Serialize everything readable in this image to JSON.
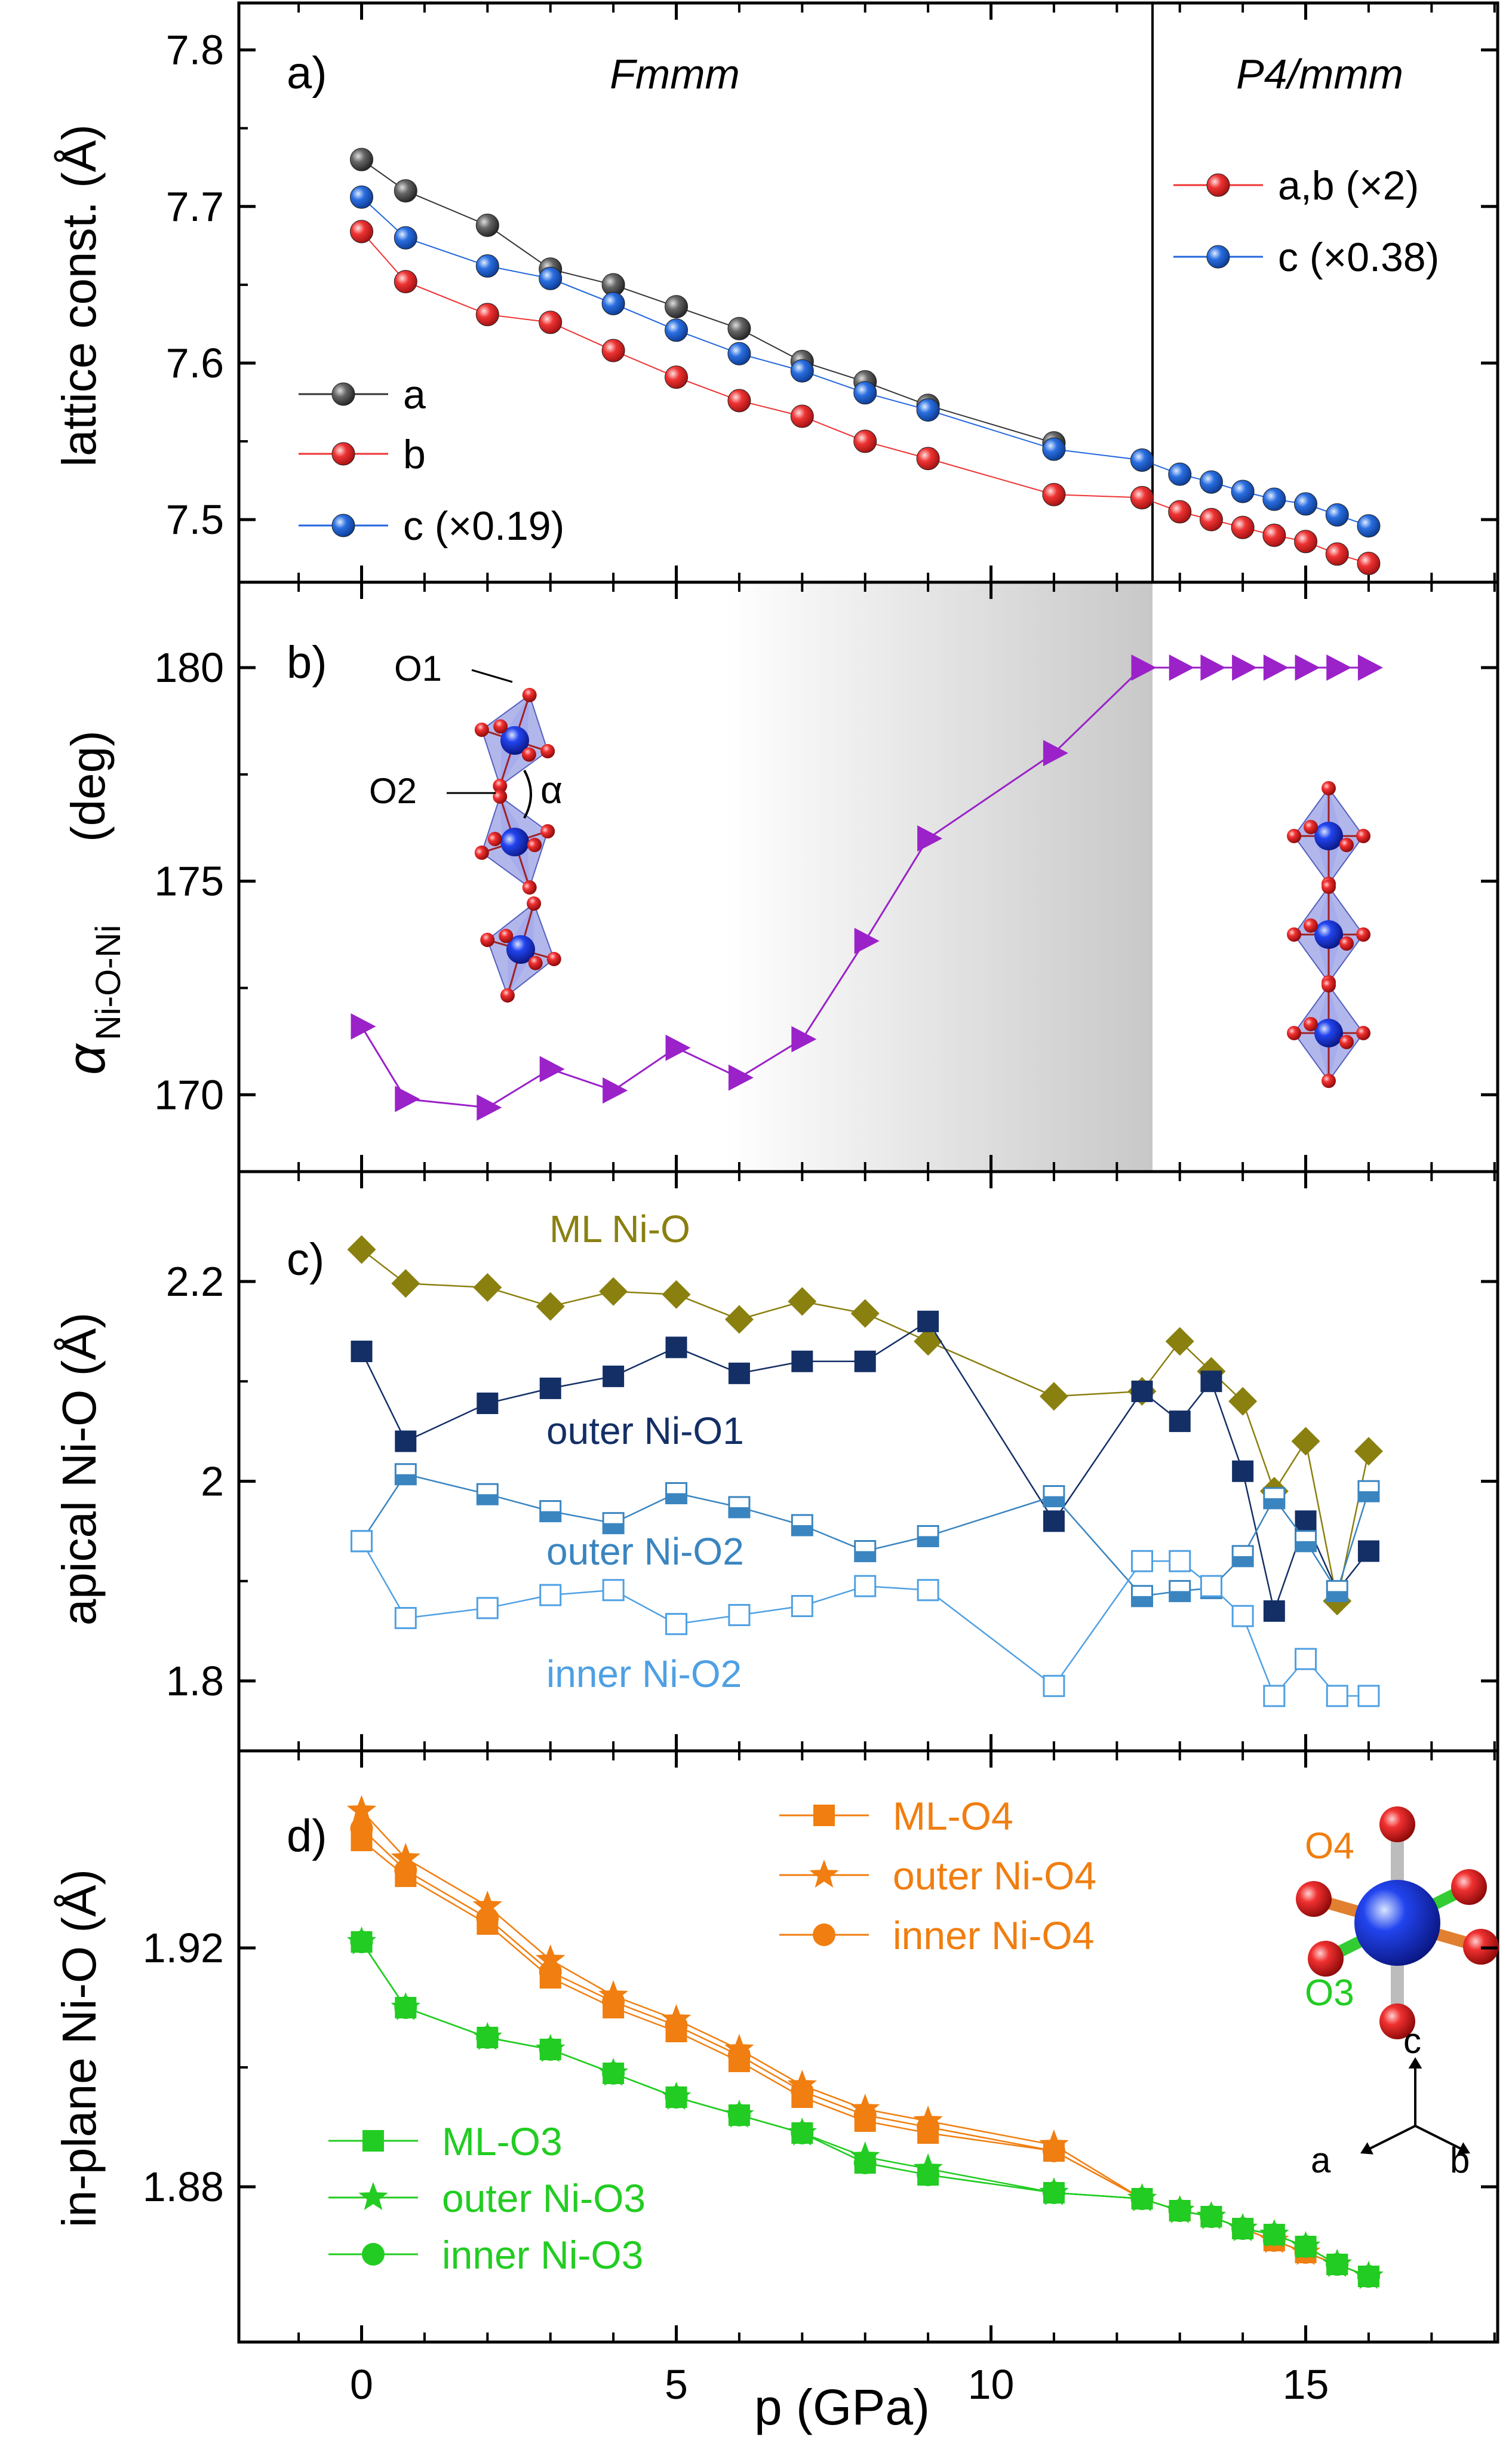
{
  "chart_data": [
    {
      "panel": "a)",
      "type": "scatter",
      "ylabel": "lattice const. (Å)",
      "ylim": [
        7.46,
        7.83
      ],
      "yticks": [
        7.5,
        7.6,
        7.7,
        7.8
      ],
      "region_labels": [
        "Fmmm",
        "P4/mmm"
      ],
      "series": [
        {
          "name": "a",
          "legend": "a",
          "color": "#555555",
          "region": "Fmmm",
          "x": [
            0,
            0.7,
            2,
            3,
            4,
            5,
            6,
            7,
            8,
            9,
            11
          ],
          "y": [
            7.73,
            7.71,
            7.688,
            7.66,
            7.65,
            7.636,
            7.622,
            7.601,
            7.588,
            7.573,
            7.549
          ]
        },
        {
          "name": "b",
          "legend": "b",
          "color": "#ee3333",
          "region": "Fmmm",
          "x": [
            0,
            0.7,
            2,
            3,
            4,
            5,
            6,
            7,
            8,
            9,
            11,
            12.4
          ],
          "y": [
            7.684,
            7.652,
            7.631,
            7.626,
            7.608,
            7.591,
            7.576,
            7.566,
            7.55,
            7.539,
            7.516,
            7.514
          ]
        },
        {
          "name": "c (Fmmm)",
          "legend": "c (×0.19)",
          "color": "#2266dd",
          "region": "Fmmm",
          "x": [
            0,
            0.7,
            2,
            3,
            4,
            5,
            6,
            7,
            8,
            9,
            11,
            12.4
          ],
          "y": [
            7.706,
            7.68,
            7.662,
            7.654,
            7.638,
            7.621,
            7.606,
            7.595,
            7.581,
            7.57,
            7.545,
            7.538
          ]
        },
        {
          "name": "a,b (P4/mmm)",
          "legend": "a,b (×2)",
          "color": "#ee3333",
          "region": "P4/mmm",
          "x": [
            12.4,
            13,
            13.5,
            14,
            14.5,
            15,
            15.5,
            16
          ],
          "y": [
            7.514,
            7.505,
            7.5,
            7.495,
            7.49,
            7.486,
            7.478,
            7.472
          ]
        },
        {
          "name": "c (P4/mmm)",
          "legend": "c (×0.38)",
          "color": "#2266dd",
          "region": "P4/mmm",
          "x": [
            12.4,
            13,
            13.5,
            14,
            14.5,
            15,
            15.5,
            16
          ],
          "y": [
            7.538,
            7.529,
            7.524,
            7.518,
            7.513,
            7.51,
            7.503,
            7.496
          ]
        }
      ]
    },
    {
      "panel": "b)",
      "type": "scatter",
      "ylabel_main": "α",
      "ylabel_sub": "Ni-O-Ni",
      "ylabel_unit": "(deg)",
      "ylim": [
        168.2,
        182
      ],
      "yticks": [
        170,
        175,
        180
      ],
      "shaded_region_x": [
        5.7,
        12.4
      ],
      "structure_labels": {
        "o1": "O1",
        "o2": "O2",
        "alpha": "α"
      },
      "series": [
        {
          "name": "alpha",
          "color": "#9a22c8",
          "x": [
            0,
            0.7,
            2,
            3,
            4,
            5,
            6,
            7,
            8,
            9,
            11,
            12.4,
            13,
            13.5,
            14,
            14.5,
            15,
            15.5,
            16
          ],
          "y": [
            171.6,
            169.9,
            169.7,
            170.6,
            170.1,
            171.1,
            170.4,
            171.3,
            173.6,
            176,
            178,
            180,
            180,
            180,
            180,
            180,
            180,
            180,
            180
          ]
        }
      ]
    },
    {
      "panel": "c)",
      "type": "scatter",
      "ylabel": "apical Ni-O (Å)",
      "ylim": [
        1.73,
        2.31
      ],
      "yticks": [
        1.8,
        2.0,
        2.2
      ],
      "series": [
        {
          "name": "ML Ni-O",
          "label": "ML Ni-O",
          "color": "#8a8010",
          "marker": "diamond",
          "x": [
            0,
            0.7,
            2,
            3,
            4,
            5,
            6,
            7,
            8,
            9,
            11,
            12.4,
            13,
            13.5,
            14,
            14.5,
            15,
            15.5,
            16
          ],
          "y": [
            2.232,
            2.198,
            2.194,
            2.175,
            2.19,
            2.187,
            2.162,
            2.18,
            2.168,
            2.14,
            2.085,
            2.09,
            2.14,
            2.11,
            2.08,
            1.99,
            2.04,
            1.88,
            2.03
          ]
        },
        {
          "name": "outer Ni-O1",
          "label": "outer Ni-O1",
          "color": "#142f66",
          "marker": "square",
          "x": [
            0,
            0.7,
            2,
            3,
            4,
            5,
            6,
            7,
            8,
            9,
            11,
            12.4,
            13,
            13.5,
            14,
            14.5,
            15,
            15.5,
            16
          ],
          "y": [
            2.13,
            2.04,
            2.078,
            2.093,
            2.105,
            2.134,
            2.108,
            2.12,
            2.12,
            2.16,
            1.96,
            2.09,
            2.06,
            2.1,
            2.01,
            1.87,
            1.96,
            1.89,
            1.93
          ]
        },
        {
          "name": "outer Ni-O2",
          "label": "outer Ni-O2",
          "color": "#3a85c0",
          "marker": "half-square",
          "x": [
            0,
            0.7,
            2,
            3,
            4,
            5,
            6,
            7,
            8,
            9,
            11,
            12.4,
            13,
            13.5,
            14,
            14.5,
            15,
            15.5,
            16
          ],
          "y": [
            1.94,
            2.007,
            1.987,
            1.97,
            1.958,
            1.988,
            1.974,
            1.956,
            1.93,
            1.945,
            1.985,
            1.885,
            1.89,
            1.893,
            1.925,
            1.983,
            1.94,
            1.89,
            1.99
          ]
        },
        {
          "name": "inner Ni-O2",
          "label": "inner Ni-O2",
          "color": "#4fa0e3",
          "marker": "open-square",
          "x": [
            0,
            0.7,
            2,
            3,
            4,
            5,
            6,
            7,
            8,
            9,
            11,
            12.4,
            13,
            13.5,
            14,
            14.5,
            15,
            15.5,
            16
          ],
          "y": [
            1.94,
            1.863,
            1.873,
            1.886,
            1.891,
            1.857,
            1.866,
            1.875,
            1.895,
            1.891,
            1.795,
            1.92,
            1.92,
            1.895,
            1.865,
            1.785,
            1.822,
            1.785,
            1.785
          ]
        }
      ]
    },
    {
      "panel": "d)",
      "type": "scatter",
      "xlabel": "p (GPa)",
      "xlim": [
        -1.95,
        18.05
      ],
      "xticks": [
        0,
        5,
        10,
        15
      ],
      "ylabel": "in-plane Ni-O (Å)",
      "ylim": [
        1.854,
        1.953
      ],
      "yticks": [
        1.88,
        1.92
      ],
      "axes_labels": {
        "a": "a",
        "b": "b",
        "c": "c",
        "o4": "O4",
        "o3": "O3"
      },
      "series": [
        {
          "name": "ML-O4",
          "legend": "ML-O4",
          "color": "#f07e10",
          "marker": "square",
          "x": [
            0,
            0.7,
            2,
            3,
            4,
            5,
            6,
            7,
            8,
            9,
            11,
            12.4,
            13,
            13.5,
            14,
            14.5,
            15,
            15.5,
            16
          ],
          "y": [
            1.938,
            1.932,
            1.924,
            1.915,
            1.91,
            1.906,
            1.901,
            1.895,
            1.891,
            1.889,
            1.886,
            1.878,
            1.876,
            1.875,
            1.873,
            1.871,
            1.869,
            1.867,
            1.865
          ]
        },
        {
          "name": "outer Ni-O4",
          "legend": "outer Ni-O4",
          "color": "#f07e10",
          "marker": "star",
          "x": [
            0,
            0.7,
            2,
            3,
            4,
            5,
            6,
            7,
            8,
            9,
            11,
            12.4,
            13,
            13.5,
            14,
            14.5,
            15,
            15.5,
            16
          ],
          "y": [
            1.943,
            1.935,
            1.927,
            1.918,
            1.912,
            1.908,
            1.903,
            1.897,
            1.893,
            1.891,
            1.887,
            1.878,
            1.876,
            1.875,
            1.873,
            1.871,
            1.869,
            1.867,
            1.865
          ]
        },
        {
          "name": "inner Ni-O4",
          "legend": "inner Ni-O4",
          "color": "#f07e10",
          "marker": "circle",
          "x": [
            0,
            0.7,
            2,
            3,
            4,
            5,
            6,
            7,
            8,
            9,
            11,
            12.4,
            13,
            13.5,
            14,
            14.5,
            15,
            15.5,
            16
          ],
          "y": [
            1.94,
            1.933,
            1.925,
            1.916,
            1.911,
            1.907,
            1.902,
            1.896,
            1.892,
            1.89,
            1.886,
            1.878,
            1.876,
            1.875,
            1.873,
            1.871,
            1.869,
            1.867,
            1.865
          ]
        },
        {
          "name": "ML-O3",
          "legend": "ML-O3",
          "color": "#22cc22",
          "marker": "square",
          "x": [
            0,
            0.7,
            2,
            3,
            4,
            5,
            6,
            7,
            8,
            9,
            11,
            12.4,
            13,
            13.5,
            14,
            14.5,
            15,
            15.5,
            16
          ],
          "y": [
            1.921,
            1.91,
            1.905,
            1.903,
            1.899,
            1.895,
            1.892,
            1.889,
            1.884,
            1.882,
            1.879,
            1.878,
            1.876,
            1.875,
            1.873,
            1.872,
            1.87,
            1.867,
            1.865
          ]
        },
        {
          "name": "outer Ni-O3",
          "legend": "outer Ni-O3",
          "color": "#22cc22",
          "marker": "star",
          "x": [
            0,
            0.7,
            2,
            3,
            4,
            5,
            6,
            7,
            8,
            9,
            11,
            12.4,
            13,
            13.5,
            14,
            14.5,
            15,
            15.5,
            16
          ],
          "y": [
            1.921,
            1.91,
            1.905,
            1.903,
            1.899,
            1.895,
            1.892,
            1.889,
            1.885,
            1.883,
            1.879,
            1.878,
            1.876,
            1.875,
            1.873,
            1.872,
            1.87,
            1.867,
            1.865
          ]
        },
        {
          "name": "inner Ni-O3",
          "legend": "inner Ni-O3",
          "color": "#22cc22",
          "marker": "circle",
          "x": [
            0,
            0.7,
            2,
            3,
            4,
            5,
            6,
            7,
            8,
            9,
            11,
            12.4,
            13,
            13.5,
            14,
            14.5,
            15,
            15.5,
            16
          ],
          "y": [
            1.921,
            1.91,
            1.905,
            1.903,
            1.899,
            1.895,
            1.892,
            1.889,
            1.884,
            1.882,
            1.879,
            1.878,
            1.876,
            1.875,
            1.873,
            1.872,
            1.87,
            1.867,
            1.865
          ]
        }
      ]
    }
  ]
}
